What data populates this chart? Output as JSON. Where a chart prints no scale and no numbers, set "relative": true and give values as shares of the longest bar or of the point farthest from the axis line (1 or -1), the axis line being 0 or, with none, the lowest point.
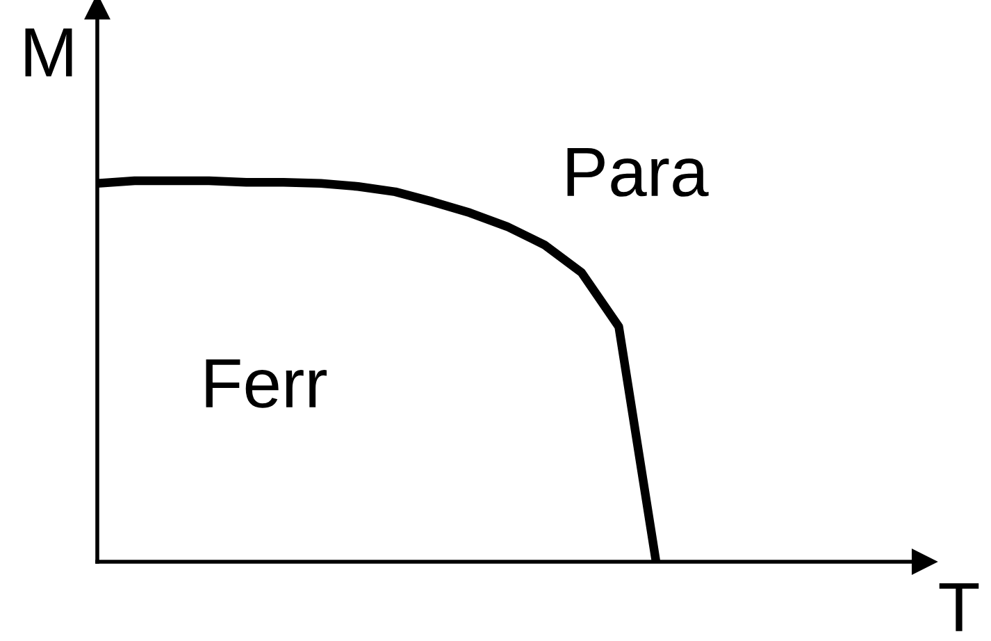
{
  "chart_data": {
    "type": "line",
    "relative": true,
    "xlabel": "T",
    "ylabel": "M",
    "categories": [
      null,
      null,
      null,
      null,
      null,
      null,
      null,
      null,
      null,
      null,
      null,
      null,
      null,
      null,
      null,
      null,
      null,
      null,
      null,
      null,
      null,
      null,
      null
    ],
    "series": [
      {
        "color": "#000000",
        "values": [
          0.993,
          1,
          1,
          1,
          0.996,
          0.996,
          0.993,
          0.985,
          0.971,
          0.945,
          0.916,
          0.88,
          0.832,
          0.759,
          0.617,
          0,
          null,
          null,
          null,
          null,
          null,
          null,
          null
        ]
      }
    ],
    "annotations": [
      "Para",
      "Ferr"
    ],
    "legend": false,
    "marker": "none",
    "line_style": "solid"
  }
}
